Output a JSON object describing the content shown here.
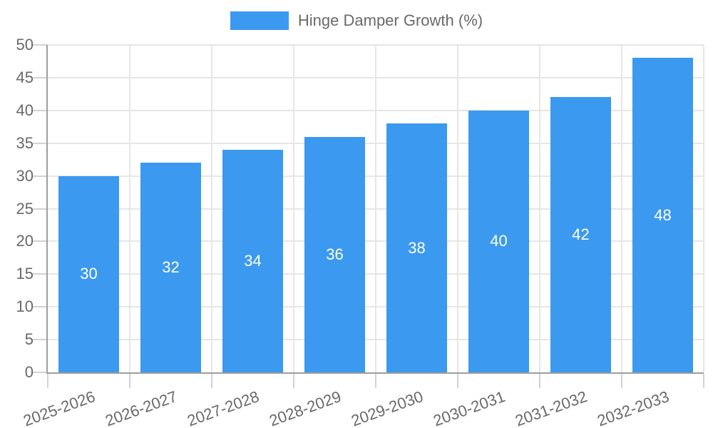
{
  "chart_data": {
    "type": "bar",
    "title": "Hinge Damper Growth (%)",
    "legend": {
      "label": "Hinge Damper Growth (%)",
      "position": "top"
    },
    "categories": [
      "2025-2026",
      "2026-2027",
      "2027-2028",
      "2028-2029",
      "2029-2030",
      "2030-2031",
      "2031-2032",
      "2032-2033"
    ],
    "values": [
      30,
      32,
      34,
      36,
      38,
      40,
      42,
      48
    ],
    "xlabel": "",
    "ylabel": "",
    "ylim": [
      0,
      50
    ],
    "ytick_step": 5,
    "yticks": [
      0,
      5,
      10,
      15,
      20,
      25,
      30,
      35,
      40,
      45,
      50
    ],
    "grid": true,
    "value_labels_shown": true,
    "colors": {
      "bar": "#3b99ef",
      "grid": "#e6e6e6",
      "tick": "#d2d2d2",
      "axis": "#9e9e9e",
      "text": "#696969",
      "value_label": "#ffffff"
    }
  }
}
